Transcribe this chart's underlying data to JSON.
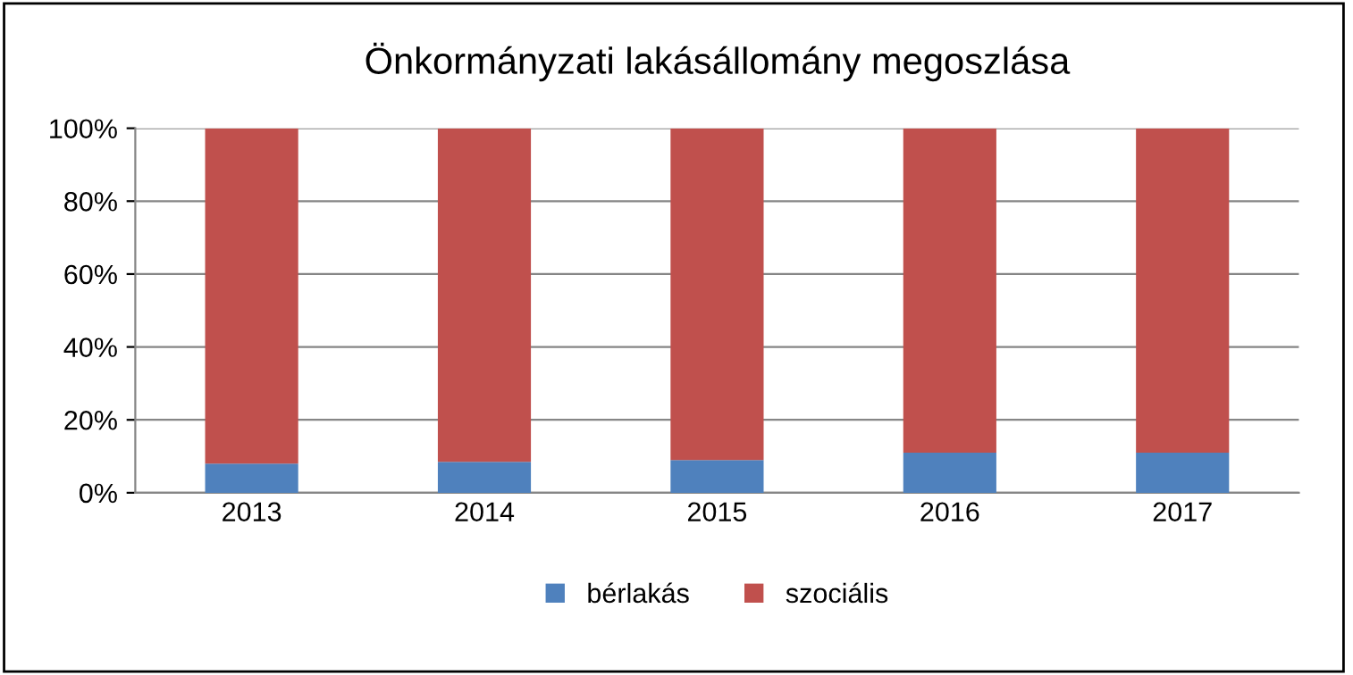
{
  "chart_data": {
    "type": "bar",
    "title": "Önkormányzati lakásállomány megoszlása",
    "categories": [
      "2013",
      "2014",
      "2015",
      "2016",
      "2017"
    ],
    "series": [
      {
        "name": "bérlakás",
        "color": "#4f81bd",
        "values": [
          8,
          8.5,
          9,
          11,
          11
        ]
      },
      {
        "name": "szociális",
        "color": "#c0504d",
        "values": [
          92,
          91.5,
          91,
          89,
          89
        ]
      }
    ],
    "stacked": true,
    "ylim": [
      0,
      100
    ],
    "yticks": [
      {
        "value": 0,
        "label": "0%"
      },
      {
        "value": 20,
        "label": "20%"
      },
      {
        "value": 40,
        "label": "40%"
      },
      {
        "value": 60,
        "label": "60%"
      },
      {
        "value": 80,
        "label": "80%"
      },
      {
        "value": 100,
        "label": "100%"
      }
    ],
    "grid": "y",
    "legend": "bottom"
  }
}
